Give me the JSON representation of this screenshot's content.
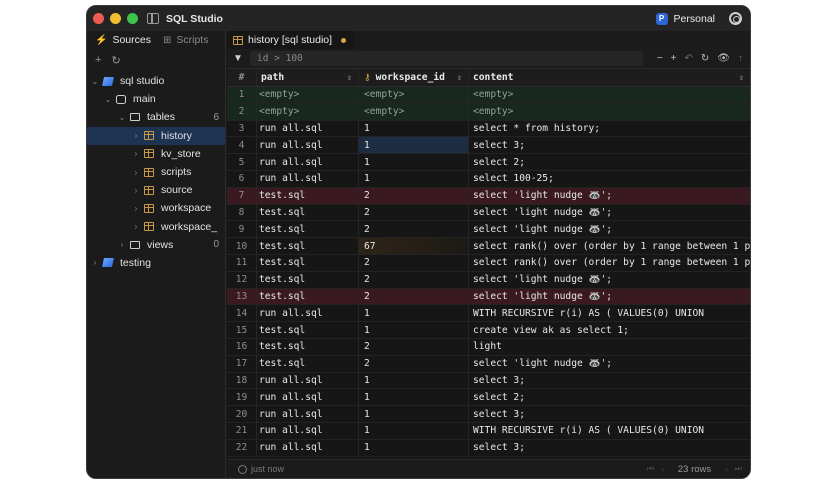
{
  "window": {
    "title": "SQL Studio",
    "profile": {
      "badge": "P",
      "name": "Personal",
      "badge_color": "#2f63d8"
    }
  },
  "sidebar": {
    "tabs": [
      {
        "label": "Sources",
        "icon": "bolt-icon",
        "active": true
      },
      {
        "label": "Scripts",
        "icon": "scripts-icon",
        "active": false
      }
    ],
    "actions": {
      "add": "+",
      "refresh": "↻"
    },
    "tree": [
      {
        "label": "sql studio",
        "level": 0,
        "icon": "database-brand",
        "expanded": true
      },
      {
        "label": "main",
        "level": 1,
        "icon": "database",
        "expanded": true
      },
      {
        "label": "tables",
        "level": 2,
        "icon": "folder",
        "expanded": true,
        "count": "6"
      },
      {
        "label": "history",
        "level": 3,
        "icon": "table",
        "selected": true
      },
      {
        "label": "kv_store",
        "level": 3,
        "icon": "table"
      },
      {
        "label": "scripts",
        "level": 3,
        "icon": "table"
      },
      {
        "label": "source",
        "level": 3,
        "icon": "table"
      },
      {
        "label": "workspace",
        "level": 3,
        "icon": "table"
      },
      {
        "label": "workspace_",
        "level": 3,
        "icon": "table"
      },
      {
        "label": "views",
        "level": 2,
        "icon": "folder",
        "count": "0"
      },
      {
        "label": "testing",
        "level": 0,
        "icon": "database-brand"
      }
    ]
  },
  "editor": {
    "tab": {
      "label": "history [sql studio]",
      "dirty": true
    },
    "filter": {
      "value": "id > 100",
      "placeholder": "id > 100"
    },
    "tools": [
      "−",
      "+",
      "↶",
      "↻",
      "👁",
      "↑"
    ]
  },
  "grid": {
    "columns": [
      {
        "key": "num",
        "label": "#"
      },
      {
        "key": "path",
        "label": "path"
      },
      {
        "key": "workspace_id",
        "label": "workspace_id",
        "foreign_key": true
      },
      {
        "key": "content",
        "label": "content"
      }
    ],
    "rows": [
      {
        "num": "1",
        "path": "<empty>",
        "workspace_id": "<empty>",
        "content": "<empty>",
        "state": "inserted"
      },
      {
        "num": "2",
        "path": "<empty>",
        "workspace_id": "<empty>",
        "content": "<empty>",
        "state": "inserted"
      },
      {
        "num": "3",
        "path": "run all.sql",
        "workspace_id": "1",
        "content": "select * from history;"
      },
      {
        "num": "4",
        "path": "run all.sql",
        "workspace_id": "1",
        "content": "select 3;",
        "cell_state": "selected"
      },
      {
        "num": "5",
        "path": "run all.sql",
        "workspace_id": "1",
        "content": "select 2;"
      },
      {
        "num": "6",
        "path": "run all.sql",
        "workspace_id": "1",
        "content": "select 100-25;"
      },
      {
        "num": "7",
        "path": "test.sql",
        "workspace_id": "2",
        "content": "select 'light nudge 🦝';",
        "state": "deleted"
      },
      {
        "num": "8",
        "path": "test.sql",
        "workspace_id": "2",
        "content": "select 'light nudge 🦝';"
      },
      {
        "num": "9",
        "path": "test.sql",
        "workspace_id": "2",
        "content": "select 'light nudge 🦝';"
      },
      {
        "num": "10",
        "path": "test.sql",
        "workspace_id": "67",
        "content": "select rank() over (order by 1 range between 1 p",
        "cell_state": "edited"
      },
      {
        "num": "11",
        "path": "test.sql",
        "workspace_id": "2",
        "content": "select rank() over (order by 1 range between 1 p"
      },
      {
        "num": "12",
        "path": "test.sql",
        "workspace_id": "2",
        "content": "select 'light nudge 🦝';"
      },
      {
        "num": "13",
        "path": "test.sql",
        "workspace_id": "2",
        "content": "select 'light nudge 🦝';",
        "state": "deleted"
      },
      {
        "num": "14",
        "path": "run all.sql",
        "workspace_id": "1",
        "content": "WITH RECURSIVE r(i) AS (     VALUES(0)     UNION"
      },
      {
        "num": "15",
        "path": "test.sql",
        "workspace_id": "1",
        "content": "create view ak as select 1;"
      },
      {
        "num": "16",
        "path": "test.sql",
        "workspace_id": "2",
        "content": "light"
      },
      {
        "num": "17",
        "path": "test.sql",
        "workspace_id": "2",
        "content": "select 'light nudge 🦝';"
      },
      {
        "num": "18",
        "path": "run all.sql",
        "workspace_id": "1",
        "content": "select 3;"
      },
      {
        "num": "19",
        "path": "run all.sql",
        "workspace_id": "1",
        "content": "select 2;"
      },
      {
        "num": "20",
        "path": "run all.sql",
        "workspace_id": "1",
        "content": "select 3;"
      },
      {
        "num": "21",
        "path": "run all.sql",
        "workspace_id": "1",
        "content": "WITH RECURSIVE r(i) AS (     VALUES(0)     UNION"
      },
      {
        "num": "22",
        "path": "run all.sql",
        "workspace_id": "1",
        "content": "select 3;"
      }
    ]
  },
  "status": {
    "updated": "just now",
    "row_count": "23 rows"
  },
  "colors": {
    "inserted_row": "#18281f",
    "deleted_row": "#3a1a20",
    "selection": "#1f3352",
    "accent": "#d9a441"
  }
}
